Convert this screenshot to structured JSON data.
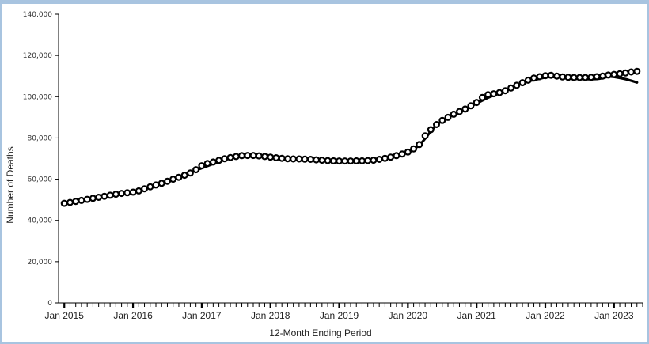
{
  "chart_data": {
    "type": "line",
    "title": "",
    "xlabel": "12-Month Ending Period",
    "ylabel": "Number of Deaths",
    "ylim": [
      0,
      140000
    ],
    "yticks": [
      0,
      20000,
      40000,
      60000,
      80000,
      100000,
      120000,
      140000
    ],
    "ytick_labels": [
      "0",
      "20,000",
      "40,000",
      "60,000",
      "80,000",
      "100,000",
      "120,000",
      "140,000"
    ],
    "xlim": [
      "2014-12",
      "2023-06"
    ],
    "xtick_labels": [
      {
        "date": "2015-01",
        "label": "Jan 2015"
      },
      {
        "date": "2016-01",
        "label": "Jan 2016"
      },
      {
        "date": "2017-01",
        "label": "Jan 2017"
      },
      {
        "date": "2018-01",
        "label": "Jan 2018"
      },
      {
        "date": "2019-01",
        "label": "Jan 2019"
      },
      {
        "date": "2020-01",
        "label": "Jan 2020"
      },
      {
        "date": "2021-01",
        "label": "Jan 2021"
      },
      {
        "date": "2022-01",
        "label": "Jan 2022"
      },
      {
        "date": "2023-01",
        "label": "Jan 2023"
      }
    ],
    "grid": false,
    "legend": "none",
    "series": [
      {
        "style": "markers",
        "color": "#000000",
        "x": [
          "2015-01",
          "2015-02",
          "2015-03",
          "2015-04",
          "2015-05",
          "2015-06",
          "2015-07",
          "2015-08",
          "2015-09",
          "2015-10",
          "2015-11",
          "2015-12",
          "2016-01",
          "2016-02",
          "2016-03",
          "2016-04",
          "2016-05",
          "2016-06",
          "2016-07",
          "2016-08",
          "2016-09",
          "2016-10",
          "2016-11",
          "2016-12",
          "2017-01",
          "2017-02",
          "2017-03",
          "2017-04",
          "2017-05",
          "2017-06",
          "2017-07",
          "2017-08",
          "2017-09",
          "2017-10",
          "2017-11",
          "2017-12",
          "2018-01",
          "2018-02",
          "2018-03",
          "2018-04",
          "2018-05",
          "2018-06",
          "2018-07",
          "2018-08",
          "2018-09",
          "2018-10",
          "2018-11",
          "2018-12",
          "2019-01",
          "2019-02",
          "2019-03",
          "2019-04",
          "2019-05",
          "2019-06",
          "2019-07",
          "2019-08",
          "2019-09",
          "2019-10",
          "2019-11",
          "2019-12",
          "2020-01",
          "2020-02",
          "2020-03",
          "2020-04",
          "2020-05",
          "2020-06",
          "2020-07",
          "2020-08",
          "2020-09",
          "2020-10",
          "2020-11",
          "2020-12",
          "2021-01",
          "2021-02",
          "2021-03",
          "2021-04",
          "2021-05",
          "2021-06",
          "2021-07",
          "2021-08",
          "2021-09",
          "2021-10",
          "2021-11",
          "2021-12",
          "2022-01",
          "2022-02",
          "2022-03",
          "2022-04",
          "2022-05",
          "2022-06",
          "2022-07",
          "2022-08",
          "2022-09",
          "2022-10",
          "2022-11",
          "2022-12",
          "2023-01",
          "2023-02",
          "2023-03",
          "2023-04",
          "2023-05"
        ],
        "values": [
          48300,
          48700,
          49200,
          49700,
          50200,
          50700,
          51200,
          51700,
          52200,
          52700,
          53100,
          53400,
          53700,
          54300,
          55300,
          56300,
          57200,
          58000,
          59000,
          60000,
          60900,
          61900,
          63000,
          64600,
          66500,
          67600,
          68300,
          69100,
          69900,
          70500,
          71000,
          71400,
          71500,
          71500,
          71300,
          71000,
          70700,
          70400,
          70100,
          69900,
          69800,
          69800,
          69700,
          69600,
          69400,
          69200,
          69000,
          68900,
          68800,
          68800,
          68800,
          68900,
          68900,
          69000,
          69200,
          69600,
          70100,
          70700,
          71400,
          72200,
          73200,
          74700,
          76800,
          81000,
          84000,
          86500,
          88500,
          90000,
          91500,
          92800,
          94000,
          95600,
          97200,
          99600,
          101000,
          101400,
          102000,
          102900,
          104200,
          105500,
          106800,
          108000,
          109000,
          109700,
          110200,
          110400,
          110000,
          109600,
          109400,
          109300,
          109300,
          109300,
          109400,
          109700,
          110000,
          110500,
          110800,
          111100,
          111500,
          112000,
          112300
        ]
      },
      {
        "style": "line",
        "color": "#000000",
        "x": [
          "2015-01",
          "2015-06",
          "2015-12",
          "2016-06",
          "2016-12",
          "2017-06",
          "2017-09",
          "2017-12",
          "2018-06",
          "2018-12",
          "2019-06",
          "2019-12",
          "2020-03",
          "2020-06",
          "2020-09",
          "2020-12",
          "2021-03",
          "2021-06",
          "2021-09",
          "2021-12",
          "2022-02",
          "2022-06",
          "2022-10",
          "2022-12",
          "2023-01",
          "2023-03",
          "2023-05"
        ],
        "values": [
          48000,
          50500,
          53200,
          57800,
          64300,
          70300,
          71400,
          70800,
          69600,
          68600,
          68700,
          71900,
          76600,
          86300,
          91300,
          95300,
          99500,
          102700,
          106600,
          108700,
          109600,
          108700,
          108600,
          109700,
          109600,
          108500,
          106900
        ]
      }
    ]
  }
}
